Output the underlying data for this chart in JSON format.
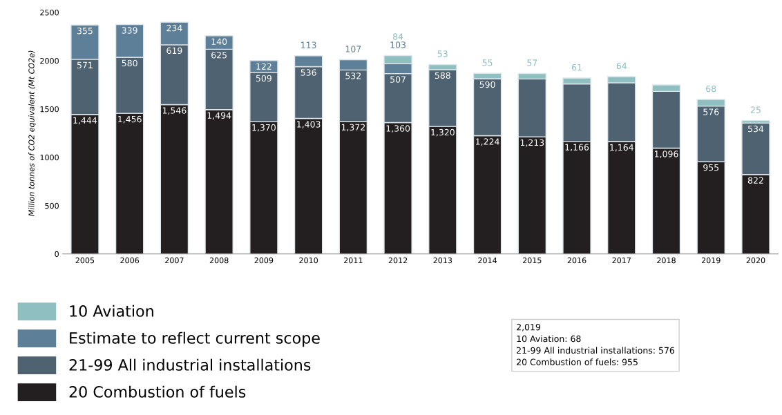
{
  "chart_data": {
    "type": "bar",
    "stacked": true,
    "ylabel": "Million tonnes of CO2 equivalent (Mt CO2e)",
    "categories": [
      "2005",
      "2006",
      "2007",
      "2008",
      "2009",
      "2010",
      "2011",
      "2012",
      "2013",
      "2014",
      "2015",
      "2016",
      "2017",
      "2018",
      "2019",
      "2020"
    ],
    "series": [
      {
        "name": "20 Combustion of fuels",
        "color": "#231f20",
        "values": [
          1444,
          1456,
          1546,
          1494,
          1370,
          1403,
          1372,
          1360,
          1320,
          1224,
          1213,
          1166,
          1164,
          1096,
          955,
          822
        ],
        "value_labels": [
          "1,444",
          "1,456",
          "1,546",
          "1,494",
          "1,370",
          "1,403",
          "1,372",
          "1,360",
          "1,320",
          "1,224",
          "1,213",
          "1,166",
          "1,164",
          "1,096",
          "955",
          "822"
        ]
      },
      {
        "name": "21-99 All industrial installations",
        "color": "#4f6272",
        "values": [
          571,
          580,
          619,
          625,
          509,
          536,
          532,
          507,
          588,
          590,
          598,
          594,
          608,
          587,
          576,
          534
        ],
        "value_labels": [
          "571",
          "580",
          "619",
          "625",
          "509",
          "536",
          "532",
          "507",
          "588",
          "590",
          null,
          null,
          null,
          null,
          "576",
          "534"
        ]
      },
      {
        "name": "Estimate to reflect current scope",
        "color": "#5e7f98",
        "values": [
          355,
          339,
          234,
          140,
          122,
          113,
          107,
          103,
          null,
          null,
          null,
          null,
          null,
          null,
          null,
          null
        ],
        "value_labels": [
          "355",
          "339",
          "234",
          "140",
          "122",
          "113",
          "107",
          "103",
          null,
          null,
          null,
          null,
          null,
          null,
          null,
          null
        ]
      },
      {
        "name": "10 Aviation",
        "color": "#8fbfc0",
        "values": [
          null,
          null,
          null,
          null,
          null,
          null,
          null,
          84,
          53,
          55,
          57,
          61,
          64,
          67,
          68,
          25
        ],
        "value_labels": [
          null,
          null,
          null,
          null,
          null,
          null,
          null,
          "84",
          "53",
          "55",
          "57",
          "61",
          "64",
          null,
          "68",
          "25"
        ]
      }
    ],
    "ylim": [
      0,
      2500
    ],
    "yticks": [
      0,
      500,
      1000,
      1500,
      2000,
      2500
    ],
    "grid": false,
    "legend": "bottom left",
    "annotations": [
      "2,019",
      "10 Aviation: 68",
      "21-99 All industrial installations: 576",
      "20 Combustion of fuels: 955"
    ]
  }
}
